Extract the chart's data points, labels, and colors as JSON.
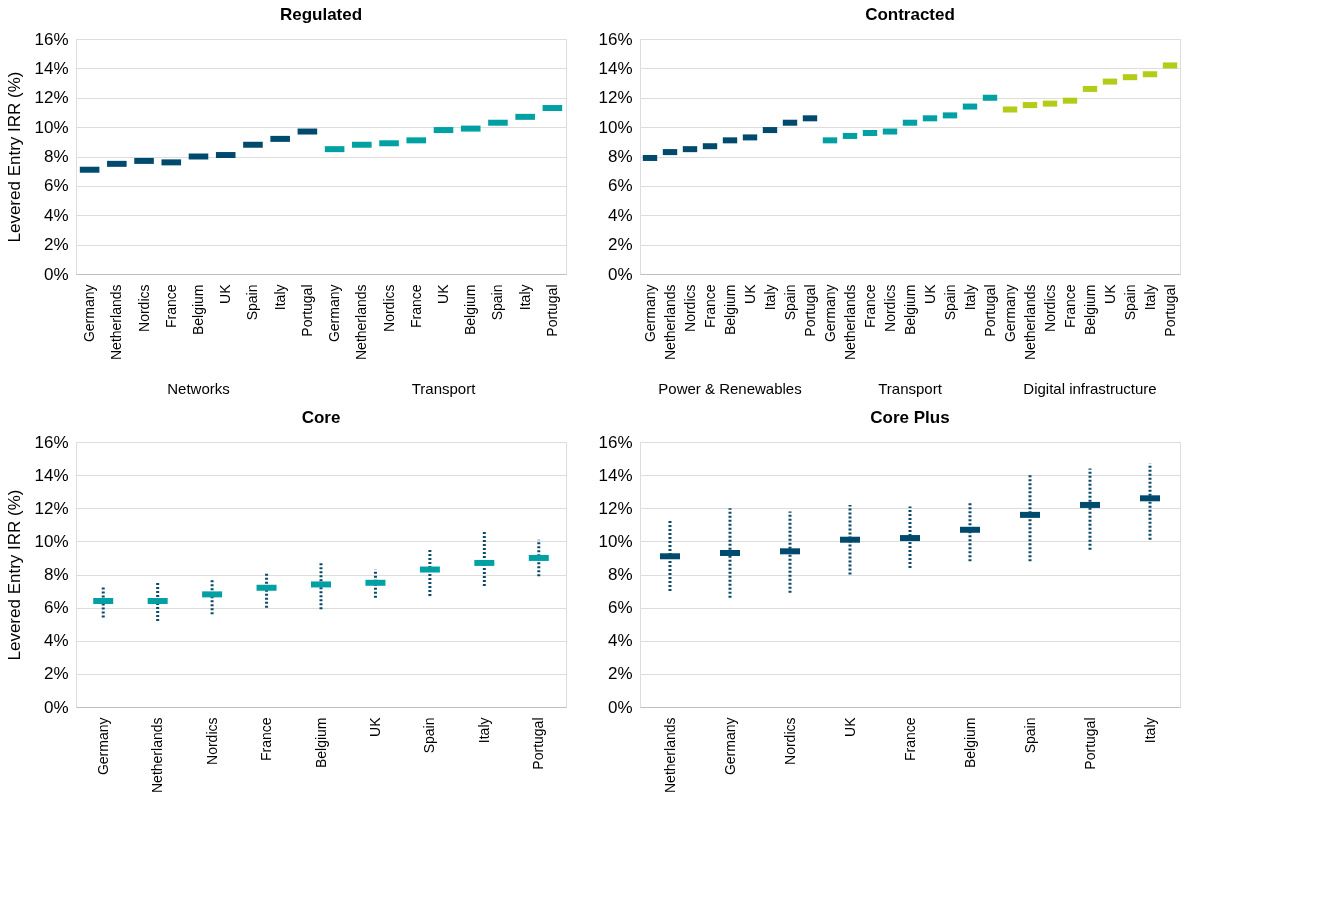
{
  "chart_data": [
    {
      "type": "scatter",
      "title": "Regulated",
      "ylabel": "Levered Entry IRR (%)",
      "grid": "y",
      "annotations": [
        "Networks",
        "Transport"
      ],
      "categories": [
        "Germany",
        "Netherlands",
        "Nordics",
        "France",
        "Belgium",
        "UK",
        "Spain",
        "Italy",
        "Portugal",
        "Germany",
        "Netherlands",
        "Nordics",
        "France",
        "UK",
        "Belgium",
        "Spain",
        "Italy",
        "Portugal"
      ],
      "ylim": [
        0,
        16
      ],
      "yticks": [
        {
          "value": 0,
          "label": "0%"
        },
        {
          "value": 2,
          "label": "2%"
        },
        {
          "value": 4,
          "label": "4%"
        },
        {
          "value": 6,
          "label": "6%"
        },
        {
          "value": 8,
          "label": "8%"
        },
        {
          "value": 10,
          "label": "10%"
        },
        {
          "value": 12,
          "label": "12%"
        },
        {
          "value": 14,
          "label": "14%"
        },
        {
          "value": 16,
          "label": "16%"
        }
      ],
      "series": [
        {
          "color": "#004a6e",
          "values": [
            7.1,
            7.5,
            7.7,
            7.6,
            8.0,
            8.1,
            8.8,
            9.2,
            9.7,
            null,
            null,
            null,
            null,
            null,
            null,
            null,
            null,
            null
          ]
        },
        {
          "color": "#00a0a3",
          "values": [
            null,
            null,
            null,
            null,
            null,
            null,
            null,
            null,
            null,
            8.5,
            8.8,
            8.9,
            9.1,
            9.8,
            9.9,
            10.3,
            10.7,
            11.3
          ]
        }
      ]
    },
    {
      "type": "scatter",
      "title": "Contracted",
      "grid": "y",
      "annotations": [
        "Power & Renewables",
        "Transport",
        "Digital infrastructure"
      ],
      "categories": [
        "Germany",
        "Netherlands",
        "Nordics",
        "France",
        "Belgium",
        "UK",
        "Italy",
        "Spain",
        "Portugal",
        "Germany",
        "Netherlands",
        "France",
        "Nordics",
        "Belgium",
        "UK",
        "Spain",
        "Italy",
        "Portugal",
        "Germany",
        "Netherlands",
        "Nordics",
        "France",
        "Belgium",
        "UK",
        "Spain",
        "Italy",
        "Portugal"
      ],
      "ylim": [
        0,
        16
      ],
      "yticks": [
        {
          "value": 0,
          "label": "0%"
        },
        {
          "value": 2,
          "label": "2%"
        },
        {
          "value": 4,
          "label": "4%"
        },
        {
          "value": 6,
          "label": "6%"
        },
        {
          "value": 8,
          "label": "8%"
        },
        {
          "value": 10,
          "label": "10%"
        },
        {
          "value": 12,
          "label": "12%"
        },
        {
          "value": 14,
          "label": "14%"
        },
        {
          "value": 16,
          "label": "16%"
        }
      ],
      "series": [
        {
          "color": "#004a6e",
          "values": [
            7.9,
            8.3,
            8.5,
            8.7,
            9.1,
            9.3,
            9.8,
            10.3,
            10.6,
            null,
            null,
            null,
            null,
            null,
            null,
            null,
            null,
            null,
            null,
            null,
            null,
            null,
            null,
            null,
            null,
            null,
            null
          ]
        },
        {
          "color": "#00a0a3",
          "values": [
            null,
            null,
            null,
            null,
            null,
            null,
            null,
            null,
            null,
            9.1,
            9.4,
            9.6,
            9.7,
            10.3,
            10.6,
            10.8,
            11.4,
            12.0,
            null,
            null,
            null,
            null,
            null,
            null,
            null,
            null,
            null
          ]
        },
        {
          "color": "#b3cc18",
          "values": [
            null,
            null,
            null,
            null,
            null,
            null,
            null,
            null,
            null,
            null,
            null,
            null,
            null,
            null,
            null,
            null,
            null,
            null,
            11.2,
            11.5,
            11.6,
            11.8,
            12.6,
            13.1,
            13.4,
            13.6,
            14.2
          ]
        }
      ]
    },
    {
      "type": "scatter",
      "title": "Core",
      "ylabel": "Levered Entry IRR (%)",
      "grid": "y",
      "categories": [
        "Germany",
        "Netherlands",
        "Nordics",
        "France",
        "Belgium",
        "UK",
        "Spain",
        "Italy",
        "Portugal"
      ],
      "ylim": [
        0,
        16
      ],
      "yticks": [
        {
          "value": 0,
          "label": "0%"
        },
        {
          "value": 2,
          "label": "2%"
        },
        {
          "value": 4,
          "label": "4%"
        },
        {
          "value": 6,
          "label": "6%"
        },
        {
          "value": 8,
          "label": "8%"
        },
        {
          "value": 10,
          "label": "10%"
        },
        {
          "value": 12,
          "label": "12%"
        },
        {
          "value": 14,
          "label": "14%"
        },
        {
          "value": 16,
          "label": "16%"
        }
      ],
      "series": [
        {
          "color": "#00a0a3",
          "values": [
            6.4,
            6.4,
            6.8,
            7.2,
            7.4,
            7.5,
            8.3,
            8.7,
            9.0
          ],
          "errors": [
            [
              5.4,
              7.3
            ],
            [
              5.2,
              7.5
            ],
            [
              5.6,
              7.7
            ],
            [
              6.0,
              8.1
            ],
            [
              5.9,
              8.7
            ],
            [
              6.6,
              8.3
            ],
            [
              6.7,
              9.5
            ],
            [
              7.3,
              10.6
            ],
            [
              7.9,
              10.1
            ]
          ]
        }
      ]
    },
    {
      "type": "scatter",
      "title": "Core Plus",
      "grid": "y",
      "categories": [
        "Netherlands",
        "Germany",
        "Nordics",
        "UK",
        "France",
        "Belgium",
        "Spain",
        "Portugal",
        "Italy"
      ],
      "ylim": [
        0,
        16
      ],
      "yticks": [
        {
          "value": 0,
          "label": "0%"
        },
        {
          "value": 2,
          "label": "2%"
        },
        {
          "value": 4,
          "label": "4%"
        },
        {
          "value": 6,
          "label": "6%"
        },
        {
          "value": 8,
          "label": "8%"
        },
        {
          "value": 10,
          "label": "10%"
        },
        {
          "value": 12,
          "label": "12%"
        },
        {
          "value": 14,
          "label": "14%"
        },
        {
          "value": 16,
          "label": "16%"
        }
      ],
      "series": [
        {
          "color": "#004a6e",
          "values": [
            9.1,
            9.3,
            9.4,
            10.1,
            10.2,
            10.7,
            11.6,
            12.2,
            12.6
          ],
          "errors": [
            [
              7.0,
              11.3
            ],
            [
              6.6,
              12.0
            ],
            [
              6.9,
              11.8
            ],
            [
              8.0,
              12.2
            ],
            [
              8.4,
              12.1
            ],
            [
              8.8,
              12.4
            ],
            [
              8.8,
              14.0
            ],
            [
              9.5,
              14.4
            ],
            [
              10.1,
              14.7
            ]
          ]
        }
      ]
    }
  ]
}
